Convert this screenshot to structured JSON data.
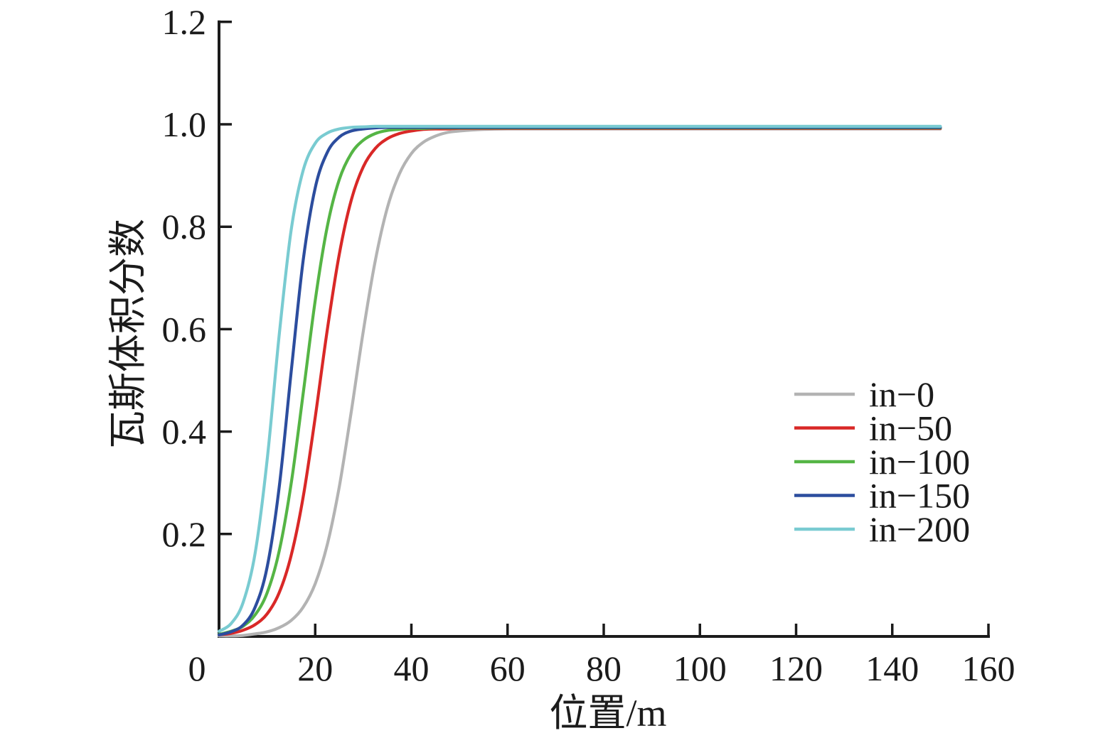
{
  "figure": {
    "background": "#ffffff",
    "axis_color": "#1b1b1b",
    "font_color": "#1b1b1b"
  },
  "chart_data": {
    "type": "line",
    "title": "",
    "xlabel": "位置/m",
    "ylabel": "瓦斯体积分数",
    "xlim": [
      0,
      160
    ],
    "ylim": [
      0,
      1.2
    ],
    "grid": false,
    "legend_position": "inside-right-middle",
    "x_ticks": [
      0,
      20,
      40,
      60,
      80,
      100,
      120,
      140,
      160
    ],
    "x_tick_labels": [
      "0",
      "20",
      "40",
      "60",
      "80",
      "100",
      "120",
      "140",
      "160"
    ],
    "y_ticks": [
      0.2,
      0.4,
      0.6,
      0.8,
      1.0,
      1.2
    ],
    "y_tick_labels": [
      "0.2",
      "0.4",
      "0.6",
      "0.8",
      "1.0",
      "1.2"
    ],
    "x": [
      0,
      2.5,
      5,
      7.5,
      10,
      12.5,
      15,
      17.5,
      20,
      22.5,
      25,
      27.5,
      30,
      32.5,
      35,
      37.5,
      40,
      42.5,
      45,
      47.5,
      50,
      55,
      60,
      70,
      80,
      100,
      120,
      150
    ],
    "series": [
      {
        "name": "in−0",
        "color": "#b3b3b3",
        "values": [
          0.001,
          0.001,
          0.002,
          0.005,
          0.009,
          0.017,
          0.031,
          0.057,
          0.103,
          0.179,
          0.292,
          0.439,
          0.596,
          0.734,
          0.837,
          0.903,
          0.943,
          0.965,
          0.977,
          0.984,
          0.987,
          0.99,
          0.991,
          0.991,
          0.991,
          0.991,
          0.991,
          0.991
        ]
      },
      {
        "name": "in−50",
        "color": "#d92827",
        "values": [
          0.003,
          0.006,
          0.012,
          0.023,
          0.044,
          0.085,
          0.158,
          0.272,
          0.428,
          0.598,
          0.746,
          0.852,
          0.917,
          0.953,
          0.972,
          0.982,
          0.987,
          0.99,
          0.991,
          0.991,
          0.992,
          0.992,
          0.992,
          0.992,
          0.992,
          0.992,
          0.992,
          0.992
        ]
      },
      {
        "name": "in−100",
        "color": "#55b545",
        "values": [
          0.004,
          0.01,
          0.02,
          0.042,
          0.085,
          0.166,
          0.298,
          0.474,
          0.656,
          0.8,
          0.892,
          0.943,
          0.969,
          0.982,
          0.988,
          0.99,
          0.992,
          0.992,
          0.993,
          0.993,
          0.993,
          0.993,
          0.993,
          0.993,
          0.993,
          0.993,
          0.993,
          0.993
        ]
      },
      {
        "name": "in−150",
        "color": "#2c4d9e",
        "values": [
          0.003,
          0.009,
          0.022,
          0.057,
          0.135,
          0.29,
          0.516,
          0.734,
          0.876,
          0.945,
          0.975,
          0.987,
          0.991,
          0.993,
          0.994,
          0.994,
          0.994,
          0.994,
          0.994,
          0.994,
          0.994,
          0.994,
          0.994,
          0.994,
          0.994,
          0.994,
          0.994,
          0.994
        ]
      },
      {
        "name": "in−200",
        "color": "#79cbd1",
        "values": [
          0.01,
          0.025,
          0.066,
          0.162,
          0.344,
          0.587,
          0.793,
          0.91,
          0.963,
          0.983,
          0.991,
          0.994,
          0.995,
          0.996,
          0.996,
          0.996,
          0.996,
          0.996,
          0.996,
          0.996,
          0.996,
          0.996,
          0.996,
          0.996,
          0.996,
          0.996,
          0.996,
          0.996
        ]
      }
    ]
  }
}
